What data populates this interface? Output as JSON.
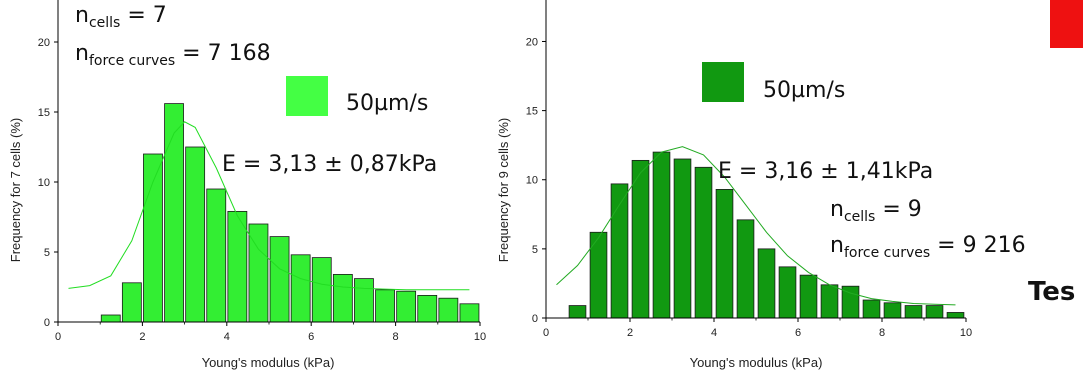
{
  "chart_data": [
    {
      "type": "bar",
      "xlabel": "Young's modulus (kPa)",
      "ylabel": "Frequency for 7 cells (%)",
      "xlim": [
        0,
        10
      ],
      "ylim": [
        0,
        23
      ],
      "xticks": [
        "0",
        "2",
        "4",
        "6",
        "8",
        "10"
      ],
      "yticks": [
        "0",
        "5",
        "10",
        "15",
        "20"
      ],
      "bar_width": 0.45,
      "bar_color": "#33ee33",
      "bin_centers": [
        1.25,
        1.75,
        2.25,
        2.75,
        3.25,
        3.75,
        4.25,
        4.75,
        5.25,
        5.75,
        6.25,
        6.75,
        7.25,
        7.75,
        8.25,
        8.75,
        9.25,
        9.75
      ],
      "values": [
        0.5,
        2.8,
        12.0,
        15.6,
        12.5,
        9.5,
        7.9,
        7.0,
        6.1,
        4.8,
        4.6,
        3.4,
        3.1,
        2.3,
        2.2,
        1.9,
        1.7,
        1.3
      ],
      "fit": {
        "x": [
          0.25,
          0.75,
          1.25,
          1.75,
          2.25,
          2.75,
          3.0,
          3.25,
          3.75,
          4.25,
          4.75,
          5.25,
          5.75,
          6.25,
          6.75,
          7.25,
          7.75,
          8.25,
          8.75,
          9.25,
          9.75
        ],
        "y": [
          2.4,
          2.6,
          3.3,
          5.8,
          10.0,
          13.5,
          14.3,
          13.9,
          11.0,
          7.6,
          5.2,
          3.8,
          3.1,
          2.7,
          2.5,
          2.4,
          2.35,
          2.3,
          2.3,
          2.3,
          2.3
        ]
      },
      "legend": {
        "label": "50µm/s",
        "color": "#44ff44"
      },
      "annotations": {
        "e_value": "E = 3,13 ± 0,87kPa",
        "ncells_base": "n",
        "ncells_sub": "cells",
        "ncells_val": " = 7",
        "nforce_base": "n",
        "nforce_sub": "force curves",
        "nforce_val": " = 7 168"
      }
    },
    {
      "type": "bar",
      "xlabel": "Young's modulus (kPa)",
      "ylabel": "Frequency for 9 cells (%)",
      "xlim": [
        0,
        10
      ],
      "ylim": [
        0,
        23
      ],
      "xticks": [
        "0",
        "2",
        "4",
        "6",
        "8",
        "10"
      ],
      "yticks": [
        "0",
        "5",
        "10",
        "15",
        "20"
      ],
      "bar_width": 0.4,
      "bar_color": "#119911",
      "bin_centers": [
        0.75,
        1.25,
        1.75,
        2.25,
        2.75,
        3.25,
        3.75,
        4.25,
        4.75,
        5.25,
        5.75,
        6.25,
        6.75,
        7.25,
        7.75,
        8.25,
        8.75,
        9.25,
        9.75
      ],
      "values": [
        0.9,
        6.2,
        9.7,
        11.4,
        12.0,
        11.5,
        10.9,
        9.3,
        7.1,
        5.0,
        3.7,
        3.1,
        2.4,
        2.3,
        1.3,
        1.1,
        0.9,
        0.9,
        0.4
      ],
      "fit": {
        "x": [
          0.25,
          0.75,
          1.25,
          1.75,
          2.25,
          2.75,
          3.25,
          3.75,
          4.25,
          4.75,
          5.25,
          5.75,
          6.25,
          6.75,
          7.25,
          7.75,
          8.25,
          8.75,
          9.25,
          9.75
        ],
        "y": [
          2.4,
          3.8,
          5.8,
          8.2,
          10.5,
          12.0,
          12.4,
          11.8,
          10.2,
          8.2,
          6.2,
          4.5,
          3.3,
          2.4,
          1.8,
          1.4,
          1.2,
          1.05,
          1.0,
          0.95
        ]
      },
      "legend": {
        "label": "50µm/s",
        "color": "#119911"
      },
      "annotations": {
        "e_value": "E = 3,16 ± 1,41kPa",
        "ncells_base": "n",
        "ncells_sub": "cells",
        "ncells_val": " = 9",
        "nforce_base": "n",
        "nforce_sub": "force curves",
        "nforce_val": " = 9 216"
      }
    }
  ],
  "right_text": {
    "bold_fragment": "Tes"
  },
  "corner_marker_color": "#ee1111"
}
